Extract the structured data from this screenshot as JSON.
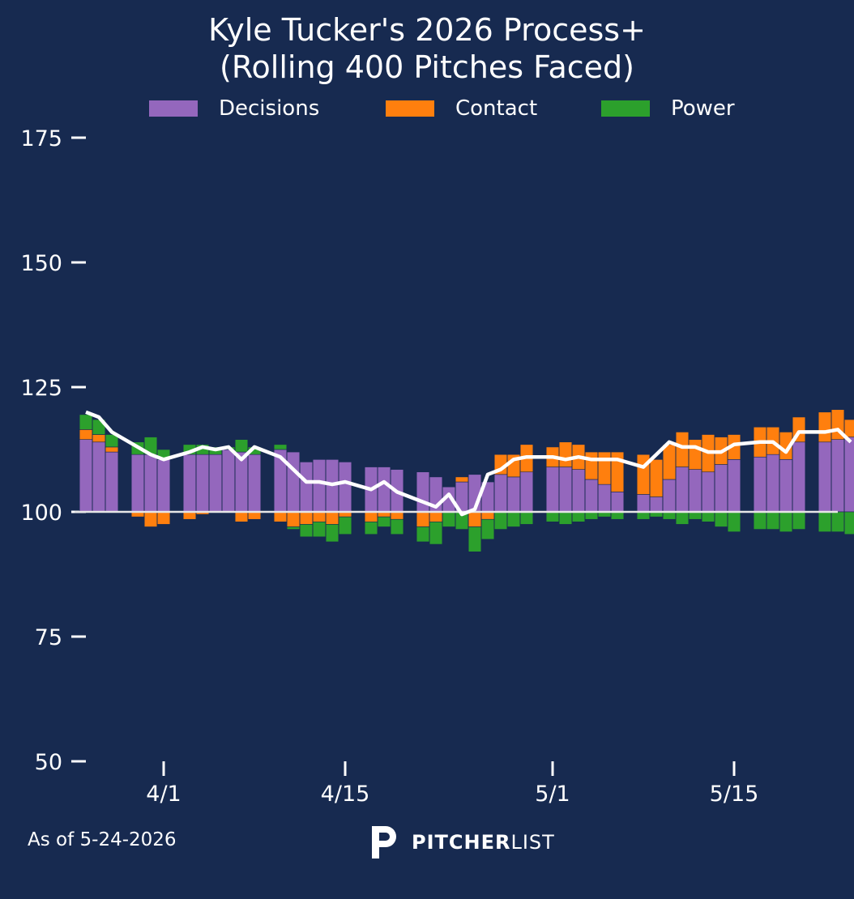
{
  "chart_data": {
    "type": "bar",
    "title": "Kyle Tucker's 2026 Process+",
    "subtitle": "(Rolling 400 Pitches Faced)",
    "baseline": 100,
    "ylim": [
      50,
      175
    ],
    "yticks": [
      50,
      75,
      100,
      125,
      150,
      175
    ],
    "xaxis_start": "3/25",
    "xaxis_end": "5/23",
    "xticks": [
      {
        "date": "4/1",
        "label": "4/1"
      },
      {
        "date": "4/15",
        "label": "4/15"
      },
      {
        "date": "5/1",
        "label": "5/1"
      },
      {
        "date": "5/15",
        "label": "5/15"
      }
    ],
    "series_colors": {
      "Decisions": "#9467bd",
      "Contact": "#ff7f0e",
      "Power": "#2ca02c"
    },
    "line_color": "#ffffff",
    "legend": [
      "Decisions",
      "Contact",
      "Power"
    ],
    "legend_position": "top-center",
    "grid": false,
    "dates": [
      "3/26",
      "3/27",
      "3/28",
      "3/30",
      "3/31",
      "4/1",
      "4/3",
      "4/4",
      "4/5",
      "4/6",
      "4/7",
      "4/8",
      "4/10",
      "4/11",
      "4/12",
      "4/13",
      "4/14",
      "4/15",
      "4/17",
      "4/18",
      "4/19",
      "4/21",
      "4/22",
      "4/23",
      "4/24",
      "4/25",
      "4/26",
      "4/27",
      "4/28",
      "4/29",
      "5/1",
      "5/2",
      "5/3",
      "5/4",
      "5/5",
      "5/6",
      "5/8",
      "5/9",
      "5/10",
      "5/11",
      "5/12",
      "5/13",
      "5/14",
      "5/15",
      "5/17",
      "5/18",
      "5/19",
      "5/20",
      "5/22",
      "5/23",
      "5/24"
    ],
    "decisions": [
      114.5,
      114,
      112,
      111.5,
      111.5,
      110.5,
      111.5,
      111.5,
      111.5,
      112.5,
      112,
      111.5,
      112.5,
      112,
      110,
      110.5,
      110.5,
      110,
      109,
      109,
      108.5,
      108,
      107,
      105,
      106,
      107.5,
      106,
      107.5,
      107,
      108,
      109,
      109,
      108.5,
      106.5,
      105.5,
      104,
      103.5,
      103,
      106.5,
      109,
      108.5,
      108,
      109.5,
      110.5,
      111,
      111.5,
      110.5,
      114,
      114,
      114.5,
      115
    ],
    "contact": [
      2,
      1.5,
      1,
      -1,
      -3,
      -2.5,
      -1.5,
      -0.5,
      0,
      0,
      -2,
      -1.5,
      -2,
      -3,
      -2.5,
      -2,
      -2.5,
      -1,
      -2,
      -1,
      -1.5,
      -3,
      -2,
      0,
      1,
      -3,
      -1.5,
      4,
      4.5,
      5.5,
      4,
      5,
      5,
      5.5,
      6.5,
      8,
      8,
      7.5,
      7,
      7,
      6,
      7.5,
      5.5,
      5,
      6,
      5.5,
      5.5,
      5,
      6,
      6,
      3.5
    ],
    "power": [
      3,
      3,
      2.5,
      2.5,
      3.5,
      2,
      2,
      2,
      1.5,
      0.5,
      2.5,
      1.5,
      1,
      -0.5,
      -2.5,
      -3,
      -3.5,
      -3.5,
      -2.5,
      -2,
      -3,
      -3,
      -4.5,
      -3,
      -3.5,
      -5,
      -4,
      -3.5,
      -3,
      -2.5,
      -2,
      -2.5,
      -2,
      -1.5,
      -1,
      -1.5,
      -1.5,
      -1,
      -1.5,
      -2.5,
      -1.5,
      -2,
      -3,
      -4,
      -3.5,
      -3.5,
      -4,
      -3.5,
      -4,
      -4,
      -4.5
    ],
    "process_plus": [
      120,
      119,
      116,
      113,
      111.5,
      110.5,
      112,
      113,
      112.5,
      113,
      110.5,
      113,
      111,
      108.5,
      106,
      106,
      105.5,
      106,
      104.5,
      106,
      104,
      102,
      101,
      103.5,
      99.5,
      100.5,
      107.5,
      108.5,
      110.5,
      111,
      111,
      110.5,
      111,
      110.5,
      110.5,
      110.5,
      109,
      111.5,
      114,
      113,
      113,
      112,
      112,
      113.5,
      114,
      114,
      112,
      116,
      116,
      116.5,
      114
    ]
  },
  "footer": {
    "as_of": "As of 5-24-2026",
    "brand_strong": "PITCHER",
    "brand_light": "LIST"
  }
}
